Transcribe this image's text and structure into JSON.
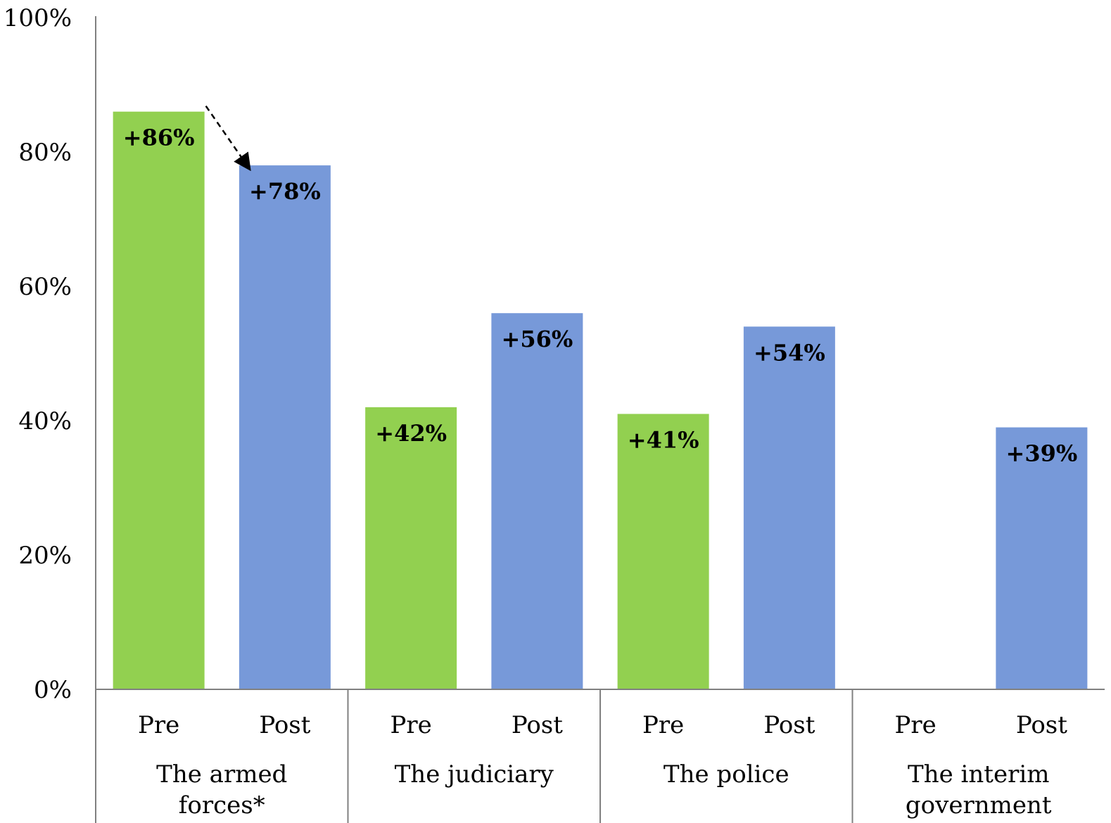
{
  "chart_data": {
    "type": "bar",
    "title": "",
    "xlabel": "",
    "ylabel": "",
    "ylim": [
      0,
      100
    ],
    "yticks": [
      "0%",
      "20%",
      "40%",
      "60%",
      "80%",
      "100%"
    ],
    "ytick_values": [
      0,
      20,
      40,
      60,
      80,
      100
    ],
    "grid": false,
    "legend": "none",
    "groups": [
      {
        "name": "The armed forces*",
        "bars": [
          {
            "label": "Pre",
            "value": 86,
            "data_label": "+86%",
            "color": "#92d050"
          },
          {
            "label": "Post",
            "value": 78,
            "data_label": "+78%",
            "color": "#7799d9"
          }
        ]
      },
      {
        "name": "The judiciary",
        "bars": [
          {
            "label": "Pre",
            "value": 42,
            "data_label": "+42%",
            "color": "#92d050"
          },
          {
            "label": "Post",
            "value": 56,
            "data_label": "+56%",
            "color": "#7799d9"
          }
        ]
      },
      {
        "name": "The police",
        "bars": [
          {
            "label": "Pre",
            "value": 41,
            "data_label": "+41%",
            "color": "#92d050"
          },
          {
            "label": "Post",
            "value": 54,
            "data_label": "+54%",
            "color": "#7799d9"
          }
        ]
      },
      {
        "name": "The interim government",
        "bars": [
          {
            "label": "Pre",
            "value": null,
            "data_label": "",
            "color": "#92d050"
          },
          {
            "label": "Post",
            "value": 39,
            "data_label": "+39%",
            "color": "#7799d9"
          }
        ]
      }
    ],
    "annotation": "dashed arrow from Pre to Post bar in The armed forces*"
  }
}
